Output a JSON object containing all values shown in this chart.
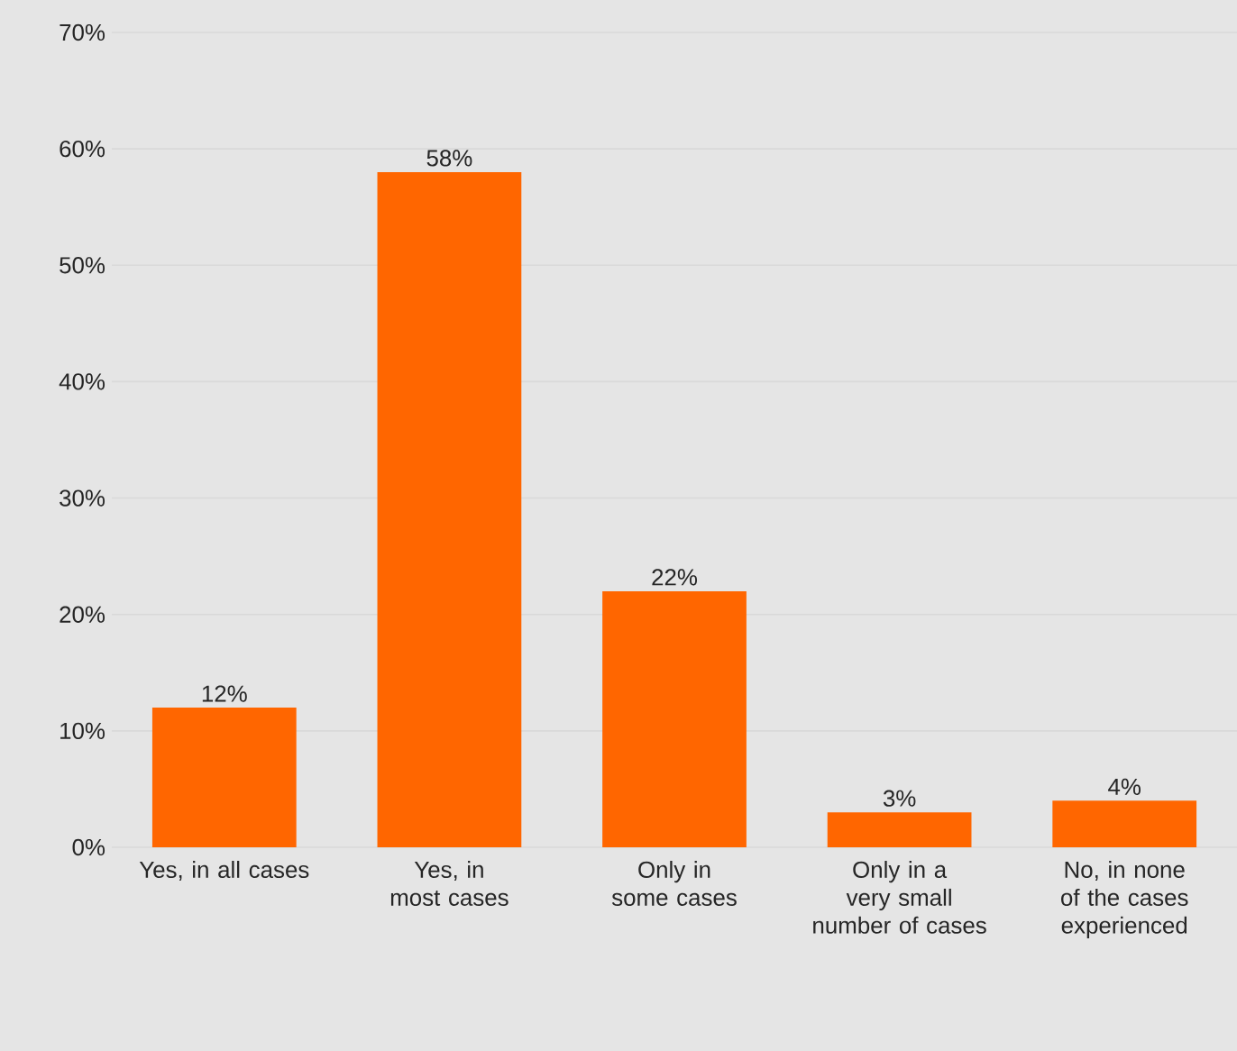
{
  "chart_data": {
    "type": "bar",
    "categories": [
      "Yes, in all cases",
      "Yes, in most cases",
      "Only in some cases",
      "Only in a very small number of cases",
      "No, in none of the cases experienced"
    ],
    "values": [
      12,
      58,
      22,
      3,
      4
    ],
    "value_labels": [
      "12%",
      "58%",
      "22%",
      "3%",
      "4%"
    ],
    "color": "#ff6600",
    "ylim": [
      0,
      70
    ],
    "yticks": [
      {
        "value": 0,
        "label": "0%"
      },
      {
        "value": 10,
        "label": "10%"
      },
      {
        "value": 20,
        "label": "20%"
      },
      {
        "value": 30,
        "label": "30%"
      },
      {
        "value": 40,
        "label": "40%"
      },
      {
        "value": 50,
        "label": "50%"
      },
      {
        "value": 60,
        "label": "60%"
      },
      {
        "value": 70,
        "label": "70%"
      }
    ],
    "grid": "y"
  }
}
